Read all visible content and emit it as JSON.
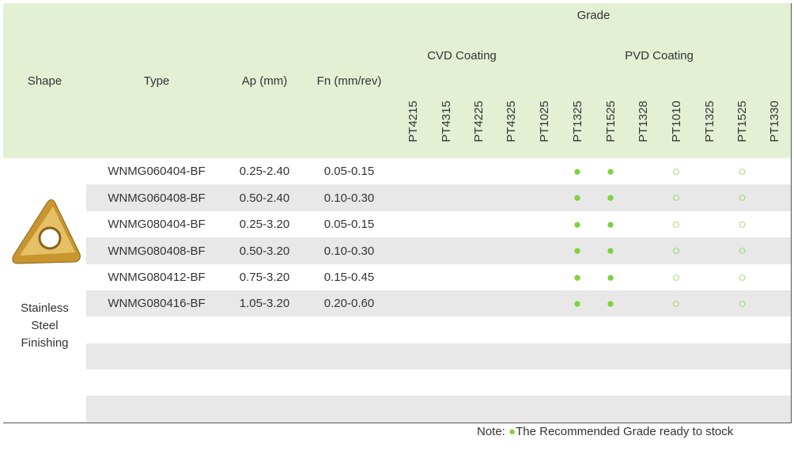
{
  "header": {
    "shape": "Shape",
    "type": "Type",
    "ap": "Ap (mm)",
    "fn": "Fn (mm/rev)",
    "grade": "Grade",
    "cvd": "CVD Coating",
    "pvd": "PVD Coating",
    "grades": [
      "PT4215",
      "PT4315",
      "PT4225",
      "PT4325",
      "PT1025",
      "PT1325",
      "PT1525",
      "PT1328",
      "PT1010",
      "PT1325",
      "PT1525",
      "PT1330"
    ]
  },
  "shape_label": "Stainless Steel Finishing",
  "rows": [
    {
      "type": "WNMG060404-BF",
      "ap": "0.25-2.40",
      "fn": "0.05-0.15",
      "marks": [
        null,
        null,
        null,
        null,
        null,
        "●",
        "●",
        null,
        "○",
        null,
        "○",
        null
      ]
    },
    {
      "type": "WNMG060408-BF",
      "ap": "0.50-2.40",
      "fn": "0.10-0.30",
      "marks": [
        null,
        null,
        null,
        null,
        null,
        "●",
        "●",
        null,
        "○",
        null,
        "○",
        null
      ]
    },
    {
      "type": "WNMG080404-BF",
      "ap": "0.25-3.20",
      "fn": "0.05-0.15",
      "marks": [
        null,
        null,
        null,
        null,
        null,
        "●",
        "●",
        null,
        "○",
        null,
        "○",
        null
      ]
    },
    {
      "type": "WNMG080408-BF",
      "ap": "0.50-3.20",
      "fn": "0.10-0.30",
      "marks": [
        null,
        null,
        null,
        null,
        null,
        "●",
        "●",
        null,
        "○",
        null,
        "○",
        null
      ]
    },
    {
      "type": "WNMG080412-BF",
      "ap": "0.75-3.20",
      "fn": "0.15-0.45",
      "marks": [
        null,
        null,
        null,
        null,
        null,
        "●",
        "●",
        null,
        "○",
        null,
        "○",
        null
      ]
    },
    {
      "type": "WNMG080416-BF",
      "ap": "1.05-3.20",
      "fn": "0.20-0.60",
      "marks": [
        null,
        null,
        null,
        null,
        null,
        "●",
        "●",
        null,
        "○",
        null,
        "○",
        null
      ]
    }
  ],
  "note": {
    "label": "Note:",
    "marker": "●",
    "text": "The Recommended Grade ready to stock"
  }
}
